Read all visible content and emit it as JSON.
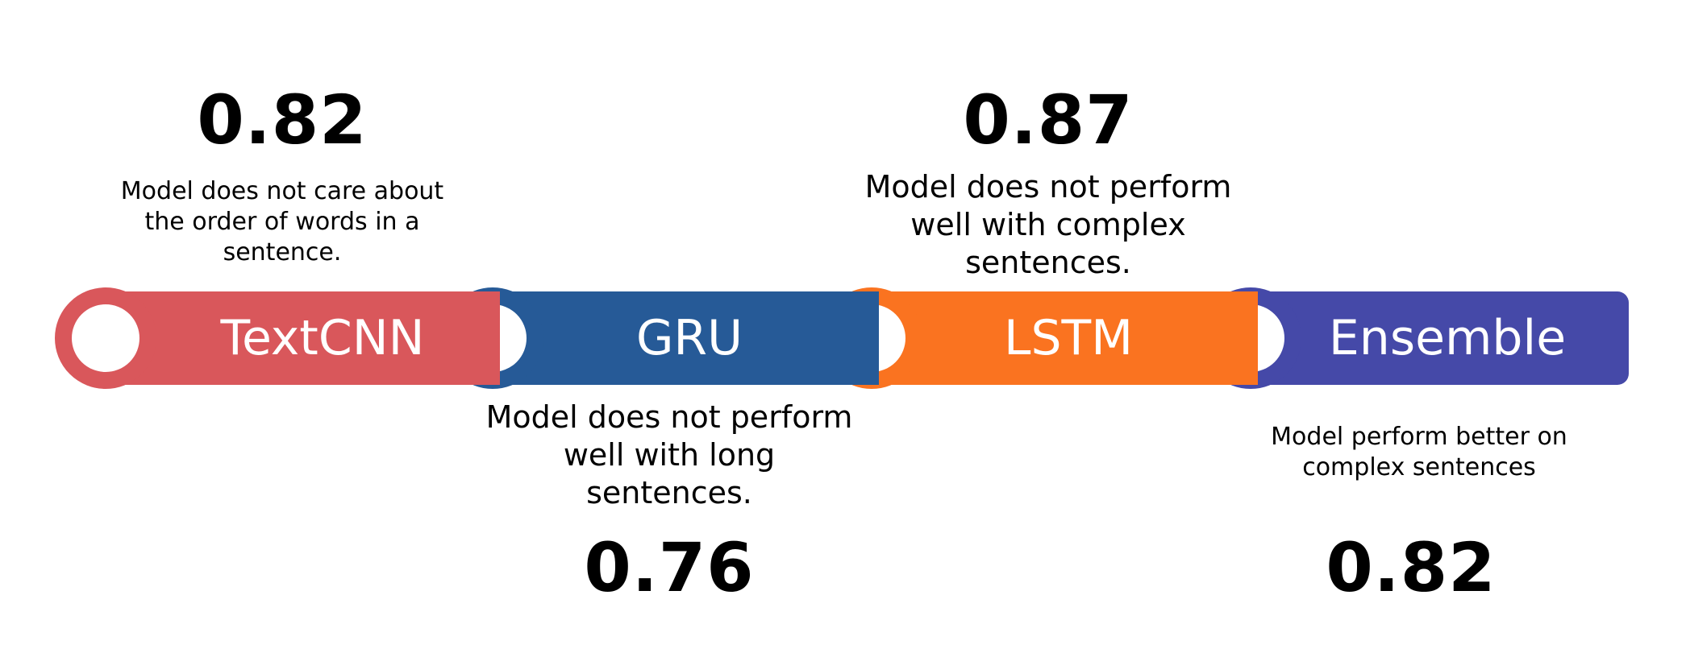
{
  "models": [
    {
      "name": "TextCNN",
      "score": "0.82",
      "color": "#d9575b",
      "description_lines": [
        "Model does not care about",
        "the order of words in a",
        "sentence."
      ]
    },
    {
      "name": "GRU",
      "score": "0.76",
      "color": "#265a97",
      "description_lines": [
        "Model does not perform",
        "well with long",
        "sentences."
      ]
    },
    {
      "name": "LSTM",
      "score": "0.87",
      "color": "#fa7320",
      "description_lines": [
        "Model does not perform",
        "well with complex",
        "sentences."
      ]
    },
    {
      "name": "Ensemble",
      "score": "0.82",
      "color": "#4549a8",
      "description_lines": [
        "Model perform better on",
        "complex sentences"
      ]
    }
  ]
}
